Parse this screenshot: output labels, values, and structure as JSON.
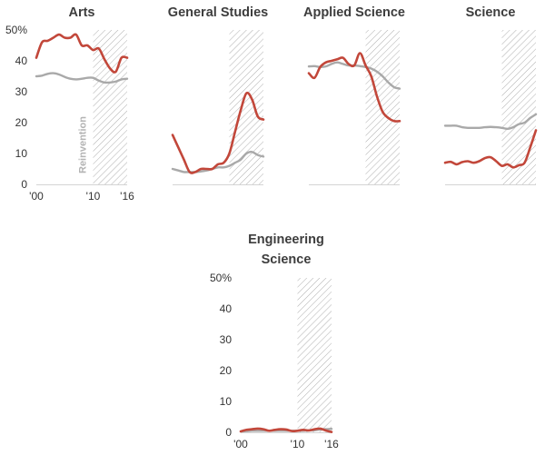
{
  "colors": {
    "highlight": "#c2473a",
    "baseline": "#a9a9a9",
    "axis": "#d4d4d4",
    "hatch": "#9a9a9a"
  },
  "annotation": "Reinvention",
  "chart_data": [
    {
      "type": "line",
      "title_lines": [
        "Arts"
      ],
      "xlim": [
        2000,
        2016
      ],
      "ylim": [
        0,
        50
      ],
      "shaded_range": [
        2010,
        2016
      ],
      "x_ticks": [
        {
          "value": 2000,
          "label": "'00"
        },
        {
          "value": 2010,
          "label": "'10"
        },
        {
          "value": 2016,
          "label": "'16"
        }
      ],
      "y_ticks": [
        {
          "value": 0,
          "label": "0"
        },
        {
          "value": 10,
          "label": "10"
        },
        {
          "value": 20,
          "label": "20"
        },
        {
          "value": 30,
          "label": "30"
        },
        {
          "value": 40,
          "label": "40"
        },
        {
          "value": 50,
          "label": "50%"
        }
      ],
      "series": [
        {
          "role": "highlight",
          "points": [
            [
              2000,
              41
            ],
            [
              2001,
              46
            ],
            [
              2002,
              46.5
            ],
            [
              2003,
              47.5
            ],
            [
              2004,
              48.5
            ],
            [
              2005,
              47.5
            ],
            [
              2006,
              47.5
            ],
            [
              2007,
              48.5
            ],
            [
              2008,
              45
            ],
            [
              2009,
              45
            ],
            [
              2010,
              43.5
            ],
            [
              2011,
              44
            ],
            [
              2012,
              40.5
            ],
            [
              2013,
              37.5
            ],
            [
              2014,
              36.5
            ],
            [
              2015,
              41
            ],
            [
              2016,
              41
            ]
          ]
        },
        {
          "role": "baseline",
          "points": [
            [
              2000,
              35
            ],
            [
              2001,
              35.2
            ],
            [
              2002,
              35.8
            ],
            [
              2003,
              36
            ],
            [
              2004,
              35.6
            ],
            [
              2005,
              34.8
            ],
            [
              2006,
              34.2
            ],
            [
              2007,
              34
            ],
            [
              2008,
              34.2
            ],
            [
              2009,
              34.5
            ],
            [
              2010,
              34.5
            ],
            [
              2011,
              33.6
            ],
            [
              2012,
              33
            ],
            [
              2013,
              33
            ],
            [
              2014,
              33.3
            ],
            [
              2015,
              34
            ],
            [
              2016,
              34.2
            ]
          ]
        }
      ]
    },
    {
      "type": "line",
      "title_lines": [
        "General Studies"
      ],
      "xlim": [
        2000,
        2016
      ],
      "ylim": [
        0,
        50
      ],
      "shaded_range": [
        2010,
        2016
      ],
      "x_ticks": [],
      "y_ticks": [],
      "series": [
        {
          "role": "highlight",
          "points": [
            [
              2000,
              16
            ],
            [
              2001,
              12
            ],
            [
              2002,
              8
            ],
            [
              2003,
              4
            ],
            [
              2004,
              4
            ],
            [
              2005,
              5
            ],
            [
              2006,
              5
            ],
            [
              2007,
              5
            ],
            [
              2008,
              6.5
            ],
            [
              2009,
              7
            ],
            [
              2010,
              10
            ],
            [
              2011,
              17
            ],
            [
              2012,
              24
            ],
            [
              2013,
              29.5
            ],
            [
              2014,
              27.5
            ],
            [
              2015,
              22
            ],
            [
              2016,
              21
            ]
          ]
        },
        {
          "role": "baseline",
          "points": [
            [
              2000,
              5
            ],
            [
              2001,
              4.5
            ],
            [
              2002,
              4
            ],
            [
              2003,
              4
            ],
            [
              2004,
              4
            ],
            [
              2005,
              4.2
            ],
            [
              2006,
              4.5
            ],
            [
              2007,
              5
            ],
            [
              2008,
              5.5
            ],
            [
              2009,
              5.5
            ],
            [
              2010,
              6
            ],
            [
              2011,
              7
            ],
            [
              2012,
              8
            ],
            [
              2013,
              10
            ],
            [
              2014,
              10.5
            ],
            [
              2015,
              9.5
            ],
            [
              2016,
              9
            ]
          ]
        }
      ]
    },
    {
      "type": "line",
      "title_lines": [
        "Applied Science"
      ],
      "xlim": [
        2000,
        2016
      ],
      "ylim": [
        0,
        50
      ],
      "shaded_range": [
        2010,
        2016
      ],
      "x_ticks": [],
      "y_ticks": [],
      "series": [
        {
          "role": "highlight",
          "points": [
            [
              2000,
              36
            ],
            [
              2001,
              34.5
            ],
            [
              2002,
              38
            ],
            [
              2003,
              39.5
            ],
            [
              2004,
              40
            ],
            [
              2005,
              40.5
            ],
            [
              2006,
              41
            ],
            [
              2007,
              39
            ],
            [
              2008,
              38.5
            ],
            [
              2009,
              42.5
            ],
            [
              2010,
              38.5
            ],
            [
              2011,
              35
            ],
            [
              2012,
              28.5
            ],
            [
              2013,
              23.5
            ],
            [
              2014,
              21.5
            ],
            [
              2015,
              20.5
            ],
            [
              2016,
              20.5
            ]
          ]
        },
        {
          "role": "baseline",
          "points": [
            [
              2000,
              38.2
            ],
            [
              2001,
              38.3
            ],
            [
              2002,
              38
            ],
            [
              2003,
              38.2
            ],
            [
              2004,
              39
            ],
            [
              2005,
              39.5
            ],
            [
              2006,
              39
            ],
            [
              2007,
              38.5
            ],
            [
              2008,
              38.5
            ],
            [
              2009,
              38.3
            ],
            [
              2010,
              38
            ],
            [
              2011,
              37.5
            ],
            [
              2012,
              36.5
            ],
            [
              2013,
              35
            ],
            [
              2014,
              33
            ],
            [
              2015,
              31.5
            ],
            [
              2016,
              31
            ]
          ]
        }
      ]
    },
    {
      "type": "line",
      "title_lines": [
        "Science"
      ],
      "xlim": [
        2000,
        2016
      ],
      "ylim": [
        0,
        50
      ],
      "shaded_range": [
        2010,
        2016
      ],
      "x_ticks": [],
      "y_ticks": [],
      "series": [
        {
          "role": "highlight",
          "points": [
            [
              2000,
              7
            ],
            [
              2001,
              7.3
            ],
            [
              2002,
              6.5
            ],
            [
              2003,
              7.2
            ],
            [
              2004,
              7.5
            ],
            [
              2005,
              7
            ],
            [
              2006,
              7.5
            ],
            [
              2007,
              8.5
            ],
            [
              2008,
              8.8
            ],
            [
              2009,
              7.5
            ],
            [
              2010,
              6
            ],
            [
              2011,
              6.5
            ],
            [
              2012,
              5.5
            ],
            [
              2013,
              6.2
            ],
            [
              2014,
              7
            ],
            [
              2015,
              12
            ],
            [
              2016,
              17.5
            ]
          ]
        },
        {
          "role": "baseline",
          "points": [
            [
              2000,
              19
            ],
            [
              2001,
              19
            ],
            [
              2002,
              19
            ],
            [
              2003,
              18.5
            ],
            [
              2004,
              18.3
            ],
            [
              2005,
              18.3
            ],
            [
              2006,
              18.3
            ],
            [
              2007,
              18.5
            ],
            [
              2008,
              18.6
            ],
            [
              2009,
              18.5
            ],
            [
              2010,
              18.3
            ],
            [
              2011,
              18
            ],
            [
              2012,
              18.5
            ],
            [
              2013,
              19.5
            ],
            [
              2014,
              20
            ],
            [
              2015,
              21.5
            ],
            [
              2016,
              22.7
            ]
          ]
        }
      ]
    },
    {
      "type": "line",
      "title_lines": [
        "Engineering",
        "Science"
      ],
      "xlim": [
        2000,
        2016
      ],
      "ylim": [
        0,
        50
      ],
      "shaded_range": [
        2010,
        2016
      ],
      "x_ticks": [
        {
          "value": 2000,
          "label": "'00"
        },
        {
          "value": 2010,
          "label": "'10"
        },
        {
          "value": 2016,
          "label": "'16"
        }
      ],
      "y_ticks": [
        {
          "value": 0,
          "label": "0"
        },
        {
          "value": 10,
          "label": "10"
        },
        {
          "value": 20,
          "label": "20"
        },
        {
          "value": 30,
          "label": "30"
        },
        {
          "value": 40,
          "label": "40"
        },
        {
          "value": 50,
          "label": "50%"
        }
      ],
      "series": [
        {
          "role": "highlight",
          "points": [
            [
              2000,
              0.3
            ],
            [
              2001,
              0.8
            ],
            [
              2002,
              1
            ],
            [
              2003,
              1.2
            ],
            [
              2004,
              1
            ],
            [
              2005,
              0.5
            ],
            [
              2006,
              0.8
            ],
            [
              2007,
              1
            ],
            [
              2008,
              0.9
            ],
            [
              2009,
              0.4
            ],
            [
              2010,
              0.5
            ],
            [
              2011,
              0.8
            ],
            [
              2012,
              0.6
            ],
            [
              2013,
              1
            ],
            [
              2014,
              1.2
            ],
            [
              2015,
              0.6
            ],
            [
              2016,
              0.1
            ]
          ]
        },
        {
          "role": "baseline",
          "points": [
            [
              2000,
              0.3
            ],
            [
              2001,
              0.4
            ],
            [
              2002,
              0.5
            ],
            [
              2003,
              0.5
            ],
            [
              2004,
              0.5
            ],
            [
              2005,
              0.5
            ],
            [
              2006,
              0.5
            ],
            [
              2007,
              0.5
            ],
            [
              2008,
              0.5
            ],
            [
              2009,
              0.5
            ],
            [
              2010,
              0.5
            ],
            [
              2011,
              0.5
            ],
            [
              2012,
              0.6
            ],
            [
              2013,
              0.7
            ],
            [
              2014,
              0.9
            ],
            [
              2015,
              1
            ],
            [
              2016,
              1.1
            ]
          ]
        }
      ]
    }
  ]
}
